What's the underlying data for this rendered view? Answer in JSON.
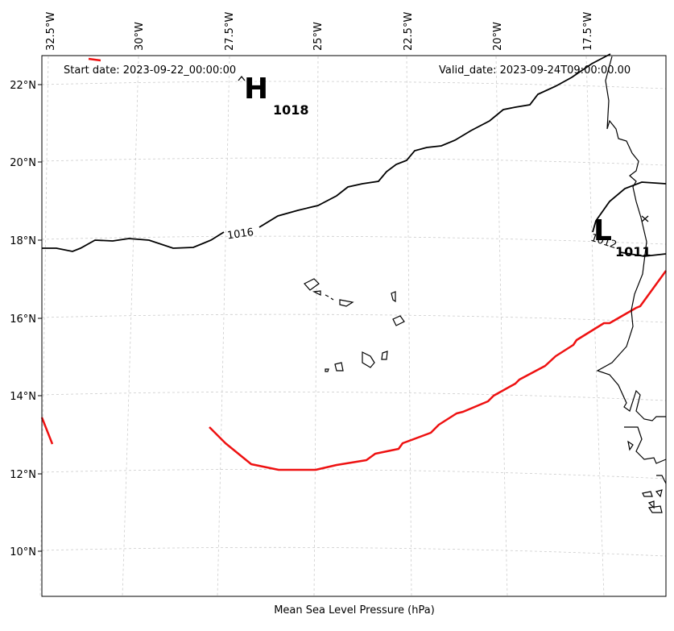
{
  "header": {
    "start_date": "Start date: 2023-09-22_00:00:00",
    "valid_date": "Valid_date: 2023-09-24T09:00:00.00"
  },
  "caption": "Mean Sea Level Pressure (hPa)",
  "lon_ticks": [
    "32.5°W",
    "30°W",
    "27.5°W",
    "25°W",
    "22.5°W",
    "20°W",
    "17.5°W"
  ],
  "lat_ticks": [
    "22°N",
    "20°N",
    "18°N",
    "16°N",
    "14°N",
    "12°N",
    "10°N"
  ],
  "pressure_centers": [
    {
      "symbol": "H",
      "value": "1018",
      "type": "high"
    },
    {
      "symbol": "L",
      "value": "1011",
      "type": "low"
    }
  ],
  "isobar_labels": [
    "1016",
    "1012"
  ],
  "colors": {
    "isobar": "#000000",
    "red_line": "#ee1111",
    "grid": "#cccccc",
    "coast": "#000000"
  },
  "icons": [
    "storm-track-line",
    "low-center-marker-x",
    "high-center-marker-caret"
  ]
}
